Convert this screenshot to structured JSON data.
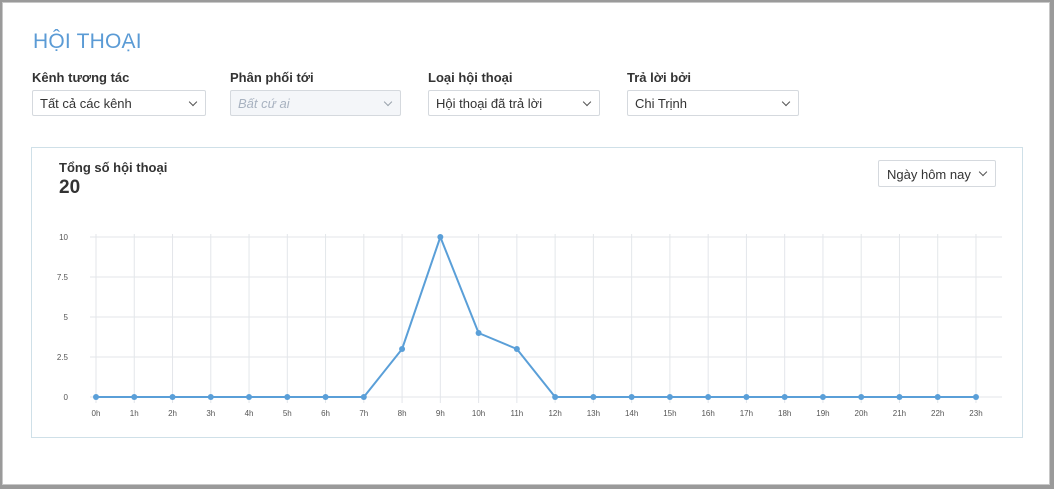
{
  "page": {
    "title": "HỘI THOẠI"
  },
  "filters": [
    {
      "label": "Kênh tương tác",
      "value": "Tất cả các kênh",
      "disabled": false
    },
    {
      "label": "Phân phối tới",
      "value": "Bất cứ ai",
      "disabled": true
    },
    {
      "label": "Loại hội thoại",
      "value": "Hội thoại đã trả lời",
      "disabled": false
    },
    {
      "label": "Trả lời bởi",
      "value": "Chi Trịnh",
      "disabled": false
    }
  ],
  "card": {
    "title": "Tổng số hội thoại",
    "count": "20",
    "range_value": "Ngày hôm nay"
  },
  "colors": {
    "accent": "#5b9bd5",
    "line": "#5a9fd8",
    "grid": "#e3e6ea"
  },
  "chart_data": {
    "type": "line",
    "categories": [
      "0h",
      "1h",
      "2h",
      "3h",
      "4h",
      "5h",
      "6h",
      "7h",
      "8h",
      "9h",
      "10h",
      "11h",
      "12h",
      "13h",
      "14h",
      "15h",
      "16h",
      "17h",
      "18h",
      "19h",
      "20h",
      "21h",
      "22h",
      "23h"
    ],
    "values": [
      0,
      0,
      0,
      0,
      0,
      0,
      0,
      0,
      3,
      10,
      4,
      3,
      0,
      0,
      0,
      0,
      0,
      0,
      0,
      0,
      0,
      0,
      0,
      0
    ],
    "yticks": [
      "0",
      "2.5",
      "5",
      "7.5",
      "10"
    ],
    "ylim": [
      0,
      10
    ],
    "grid": true
  }
}
